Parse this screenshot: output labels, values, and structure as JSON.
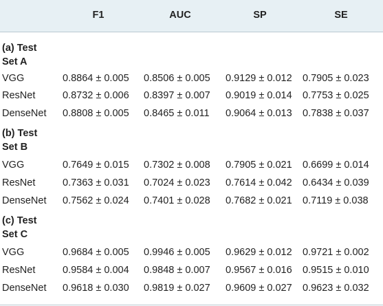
{
  "header": {
    "col0": "",
    "col1": "F1",
    "col2": "AUC",
    "col3": "SP",
    "col4": "SE"
  },
  "groups": [
    {
      "title_line1": "(a) Test",
      "title_line2": "Set A",
      "rows": [
        {
          "model": "VGG",
          "f1": "0.8864 ± 0.005",
          "auc": "0.8506 ± 0.005",
          "sp": "0.9129 ± 0.012",
          "se": "0.7905 ± 0.023"
        },
        {
          "model": "ResNet",
          "f1": "0.8732 ± 0.006",
          "auc": "0.8397 ± 0.007",
          "sp": "0.9019 ± 0.014",
          "se": "0.7753 ± 0.025"
        },
        {
          "model": "DenseNet",
          "f1": "0.8808 ± 0.005",
          "auc": "0.8465 ± 0.011",
          "sp": "0.9064 ± 0.013",
          "se": "0.7838 ± 0.037"
        }
      ]
    },
    {
      "title_line1": "(b) Test",
      "title_line2": "Set B",
      "rows": [
        {
          "model": "VGG",
          "f1": "0.7649 ± 0.015",
          "auc": "0.7302 ± 0.008",
          "sp": "0.7905 ± 0.021",
          "se": "0.6699 ± 0.014"
        },
        {
          "model": "ResNet",
          "f1": "0.7363 ± 0.031",
          "auc": "0.7024 ± 0.023",
          "sp": "0.7614 ± 0.042",
          "se": "0.6434 ± 0.039"
        },
        {
          "model": "DenseNet",
          "f1": "0.7562 ± 0.024",
          "auc": "0.7401 ± 0.028",
          "sp": "0.7682 ± 0.021",
          "se": "0.7119 ± 0.038"
        }
      ]
    },
    {
      "title_line1": "(c) Test",
      "title_line2": "Set C",
      "rows": [
        {
          "model": "VGG",
          "f1": "0.9684 ± 0.005",
          "auc": "0.9946 ± 0.005",
          "sp": "0.9629 ± 0.012",
          "se": "0.9721 ± 0.002"
        },
        {
          "model": "ResNet",
          "f1": "0.9584 ± 0.004",
          "auc": "0.9848 ± 0.007",
          "sp": "0.9567 ± 0.016",
          "se": "0.9515 ± 0.010"
        },
        {
          "model": "DenseNet",
          "f1": "0.9618 ± 0.030",
          "auc": "0.9819 ± 0.027",
          "sp": "0.9609 ± 0.027",
          "se": "0.9623 ± 0.032"
        }
      ]
    }
  ]
}
